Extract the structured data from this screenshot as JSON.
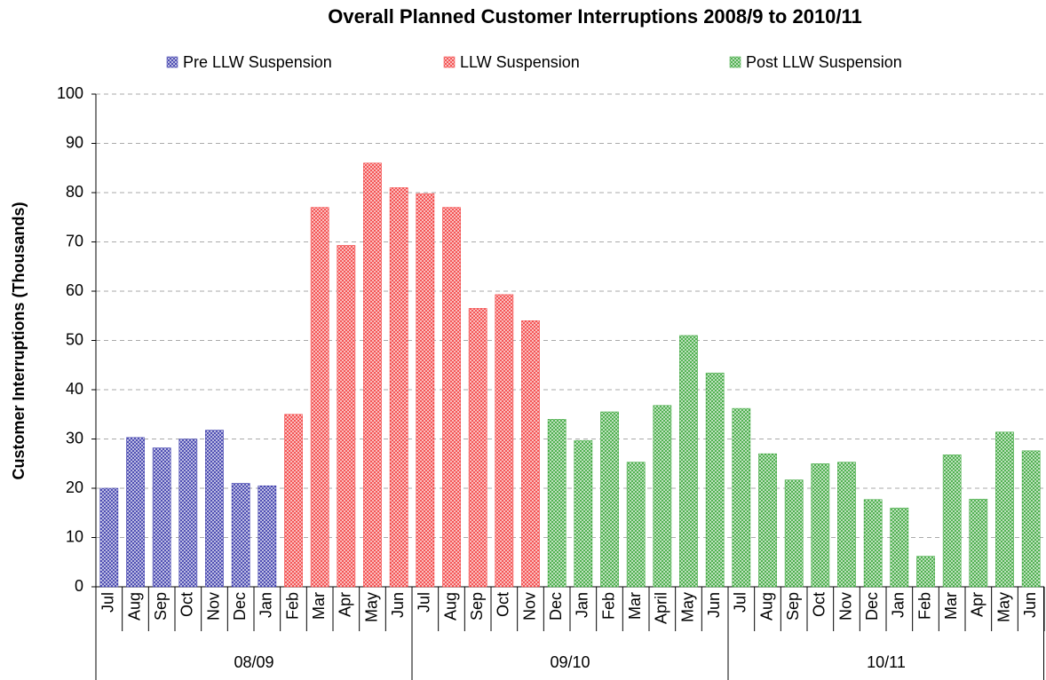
{
  "chart_data": {
    "type": "bar",
    "title": "Overall Planned Customer Interruptions 2008/9 to 2010/11",
    "y_label": "Customer Interruptions (Thousands)",
    "categories": [
      "Jul",
      "Aug",
      "Sep",
      "Oct",
      "Nov",
      "Dec",
      "Jan",
      "Feb",
      "Mar",
      "Apr",
      "May",
      "Jun",
      "Jul",
      "Aug",
      "Sep",
      "Oct",
      "Nov",
      "Dec",
      "Jan",
      "Feb",
      "Mar",
      "April",
      "May",
      "Jun",
      "Jul",
      "Aug",
      "Sep",
      "Oct",
      "Nov",
      "Dec",
      "Jan",
      "Feb",
      "Mar",
      "Apr",
      "May",
      "Jun"
    ],
    "groups": [
      "08/09",
      "09/10",
      "10/11"
    ],
    "series": [
      {
        "name": "Pre LLW Suspension",
        "color": "#3434a8",
        "values": [
          20,
          30.3,
          28.2,
          30,
          31.8,
          21,
          20.5,
          null,
          null,
          null,
          null,
          null,
          null,
          null,
          null,
          null,
          null,
          null,
          null,
          null,
          null,
          null,
          null,
          null,
          null,
          null,
          null,
          null,
          null,
          null,
          null,
          null,
          null,
          null,
          null,
          null
        ]
      },
      {
        "name": "LLW Suspension",
        "color": "#f23a3a",
        "values": [
          null,
          null,
          null,
          null,
          null,
          null,
          null,
          35,
          77,
          69.3,
          86,
          81,
          79.8,
          77,
          56.5,
          59.3,
          54,
          null,
          null,
          null,
          null,
          null,
          null,
          null,
          null,
          null,
          null,
          null,
          null,
          null,
          null,
          null,
          null,
          null,
          null,
          null
        ]
      },
      {
        "name": "Post LLW Suspension",
        "color": "#36a436",
        "values": [
          null,
          null,
          null,
          null,
          null,
          null,
          null,
          null,
          null,
          null,
          null,
          null,
          null,
          null,
          null,
          null,
          null,
          34,
          29.7,
          35.5,
          25.3,
          36.8,
          51,
          43.4,
          36.2,
          27,
          21.7,
          25,
          25.3,
          17.7,
          16,
          6.2,
          26.8,
          17.8,
          31.4,
          27.6
        ]
      }
    ],
    "ylim": [
      0,
      100
    ],
    "yticks": [
      0,
      10,
      20,
      30,
      40,
      50,
      60,
      70,
      80,
      90,
      100
    ],
    "grid": true,
    "legend": "top"
  }
}
